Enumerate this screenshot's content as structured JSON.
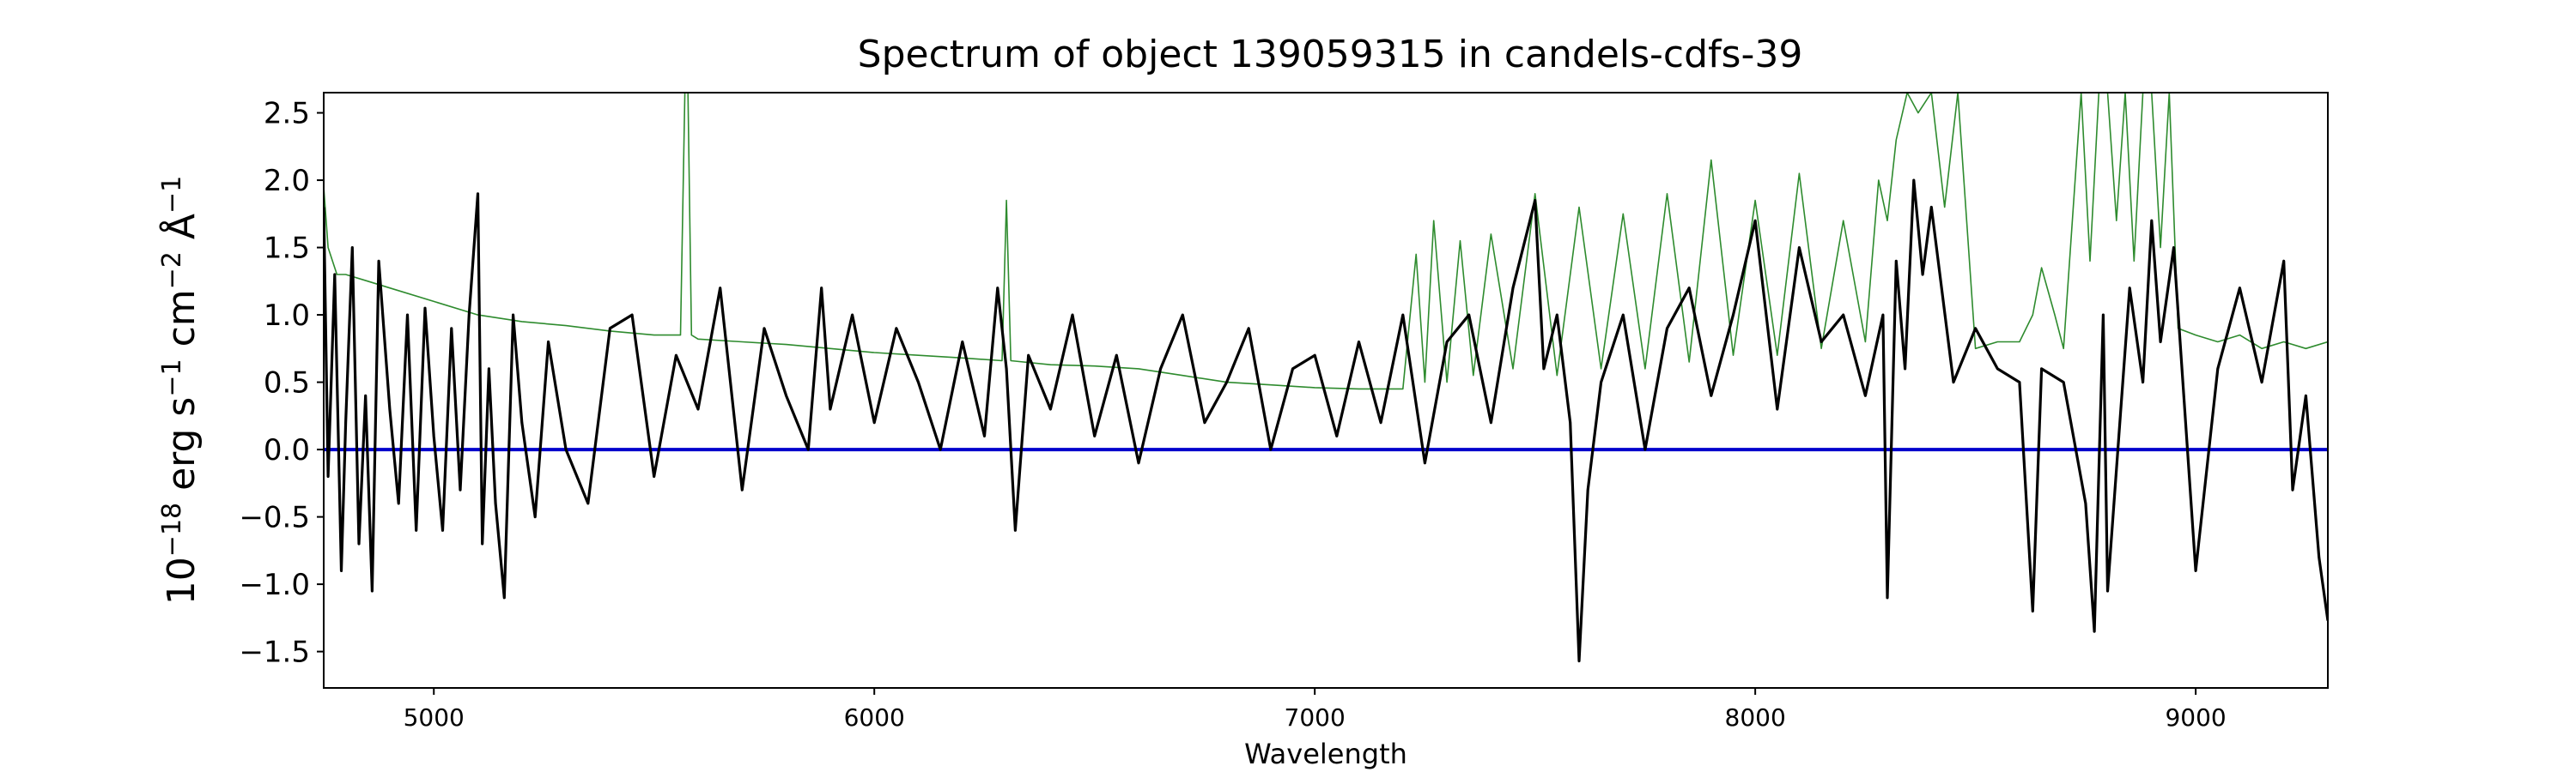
{
  "chart_data": {
    "type": "line",
    "title": "Spectrum of object 139059315 in candels-cdfs-39",
    "xlabel": "Wavelength",
    "ylabel": {
      "base": "10",
      "exp1": "−18",
      "unit_erg": " erg s",
      "exp2": "−1",
      "unit_cm": " cm",
      "exp3": "−2",
      "unit_ang": " Å",
      "exp4": "−1"
    },
    "xlim": [
      4750,
      9300
    ],
    "ylim": [
      -1.77,
      2.65
    ],
    "xticks": [
      5000,
      6000,
      7000,
      8000,
      9000
    ],
    "xtick_labels": [
      "5000",
      "6000",
      "7000",
      "8000",
      "9000"
    ],
    "yticks": [
      -1.5,
      -1.0,
      -0.5,
      0.0,
      0.5,
      1.0,
      1.5,
      2.0,
      2.5
    ],
    "ytick_labels": [
      "−1.5",
      "−1.0",
      "−0.5",
      "0.0",
      "0.5",
      "1.0",
      "1.5",
      "2.0",
      "2.5"
    ],
    "grid": false,
    "series": [
      {
        "role": "zero-level",
        "color": "#0000cc",
        "x": [
          4750,
          9300
        ],
        "y": [
          0.0,
          0.0
        ]
      },
      {
        "role": "model",
        "color": "#2e8b2e",
        "x": [
          4750,
          4760,
          4780,
          4800,
          4850,
          4900,
          5000,
          5100,
          5200,
          5300,
          5400,
          5500,
          5560,
          5570,
          5577,
          5585,
          5600,
          5700,
          5800,
          5900,
          6000,
          6100,
          6200,
          6290,
          6300,
          6310,
          6400,
          6500,
          6600,
          6700,
          6800,
          6900,
          7000,
          7100,
          7200,
          7230,
          7250,
          7270,
          7300,
          7330,
          7360,
          7400,
          7450,
          7500,
          7550,
          7600,
          7650,
          7700,
          7750,
          7800,
          7850,
          7900,
          7950,
          8000,
          8050,
          8100,
          8150,
          8200,
          8250,
          8280,
          8300,
          8320,
          8345,
          8370,
          8400,
          8430,
          8460,
          8500,
          8550,
          8600,
          8630,
          8650,
          8680,
          8700,
          8740,
          8760,
          8780,
          8800,
          8820,
          8840,
          8860,
          8880,
          8900,
          8920,
          8940,
          8960,
          9000,
          9050,
          9100,
          9150,
          9200,
          9250,
          9300
        ],
        "y": [
          1.95,
          1.5,
          1.3,
          1.3,
          1.25,
          1.2,
          1.1,
          1.0,
          0.95,
          0.92,
          0.88,
          0.85,
          0.85,
          2.65,
          2.65,
          0.85,
          0.82,
          0.8,
          0.78,
          0.75,
          0.72,
          0.7,
          0.68,
          0.66,
          1.85,
          0.66,
          0.63,
          0.62,
          0.6,
          0.55,
          0.5,
          0.48,
          0.46,
          0.45,
          0.45,
          1.45,
          0.5,
          1.7,
          0.5,
          1.55,
          0.55,
          1.6,
          0.6,
          1.9,
          0.55,
          1.8,
          0.6,
          1.75,
          0.6,
          1.9,
          0.65,
          2.15,
          0.7,
          1.85,
          0.7,
          2.05,
          0.75,
          1.7,
          0.8,
          2.0,
          1.7,
          2.3,
          2.65,
          2.5,
          2.65,
          1.8,
          2.65,
          0.75,
          0.8,
          0.8,
          1.0,
          1.35,
          1.0,
          0.75,
          2.65,
          1.4,
          2.65,
          2.65,
          1.7,
          2.65,
          1.4,
          2.65,
          2.65,
          1.5,
          2.65,
          0.9,
          0.85,
          0.8,
          0.85,
          0.75,
          0.8,
          0.75,
          0.8
        ]
      },
      {
        "role": "observed",
        "color": "#000000",
        "x": [
          4750,
          4760,
          4775,
          4790,
          4800,
          4815,
          4830,
          4845,
          4860,
          4875,
          4900,
          4920,
          4940,
          4960,
          4980,
          5000,
          5020,
          5040,
          5060,
          5080,
          5100,
          5110,
          5125,
          5140,
          5160,
          5180,
          5200,
          5230,
          5260,
          5300,
          5350,
          5400,
          5450,
          5500,
          5550,
          5600,
          5650,
          5700,
          5750,
          5800,
          5850,
          5880,
          5900,
          5950,
          6000,
          6050,
          6100,
          6150,
          6200,
          6250,
          6280,
          6300,
          6320,
          6350,
          6400,
          6450,
          6500,
          6550,
          6600,
          6650,
          6700,
          6750,
          6800,
          6850,
          6900,
          6950,
          7000,
          7050,
          7100,
          7150,
          7200,
          7250,
          7300,
          7350,
          7400,
          7450,
          7500,
          7520,
          7550,
          7580,
          7600,
          7620,
          7650,
          7700,
          7750,
          7800,
          7850,
          7900,
          7950,
          8000,
          8050,
          8100,
          8150,
          8200,
          8250,
          8290,
          8300,
          8320,
          8340,
          8360,
          8380,
          8400,
          8450,
          8500,
          8550,
          8600,
          8630,
          8650,
          8700,
          8750,
          8770,
          8790,
          8800,
          8830,
          8850,
          8880,
          8900,
          8920,
          8950,
          9000,
          9050,
          9100,
          9150,
          9200,
          9220,
          9250,
          9280,
          9300
        ],
        "y": [
          1.8,
          -0.2,
          1.3,
          -0.9,
          0.2,
          1.5,
          -0.7,
          0.4,
          -1.05,
          1.4,
          0.3,
          -0.4,
          1.0,
          -0.6,
          1.05,
          0.1,
          -0.6,
          0.9,
          -0.3,
          1.0,
          1.9,
          -0.7,
          0.6,
          -0.4,
          -1.1,
          1.0,
          0.2,
          -0.5,
          0.8,
          0.0,
          -0.4,
          0.9,
          1.0,
          -0.2,
          0.7,
          0.3,
          1.2,
          -0.3,
          0.9,
          0.4,
          0.0,
          1.2,
          0.3,
          1.0,
          0.2,
          0.9,
          0.5,
          0.0,
          0.8,
          0.1,
          1.2,
          0.6,
          -0.6,
          0.7,
          0.3,
          1.0,
          0.1,
          0.7,
          -0.1,
          0.6,
          1.0,
          0.2,
          0.5,
          0.9,
          0.0,
          0.6,
          0.7,
          0.1,
          0.8,
          0.2,
          1.0,
          -0.1,
          0.8,
          1.0,
          0.2,
          1.2,
          1.85,
          0.6,
          1.0,
          0.2,
          -1.57,
          -0.3,
          0.5,
          1.0,
          0.0,
          0.9,
          1.2,
          0.4,
          1.0,
          1.7,
          0.3,
          1.5,
          0.8,
          1.0,
          0.4,
          1.0,
          -1.1,
          1.4,
          0.6,
          2.0,
          1.3,
          1.8,
          0.5,
          0.9,
          0.6,
          0.5,
          -1.2,
          0.6,
          0.5,
          -0.4,
          -1.35,
          1.0,
          -1.05,
          0.3,
          1.2,
          0.5,
          1.7,
          0.8,
          1.5,
          -0.9,
          0.6,
          1.2,
          0.5,
          1.4,
          -0.3,
          0.4,
          -0.8,
          -1.27
        ]
      }
    ]
  }
}
